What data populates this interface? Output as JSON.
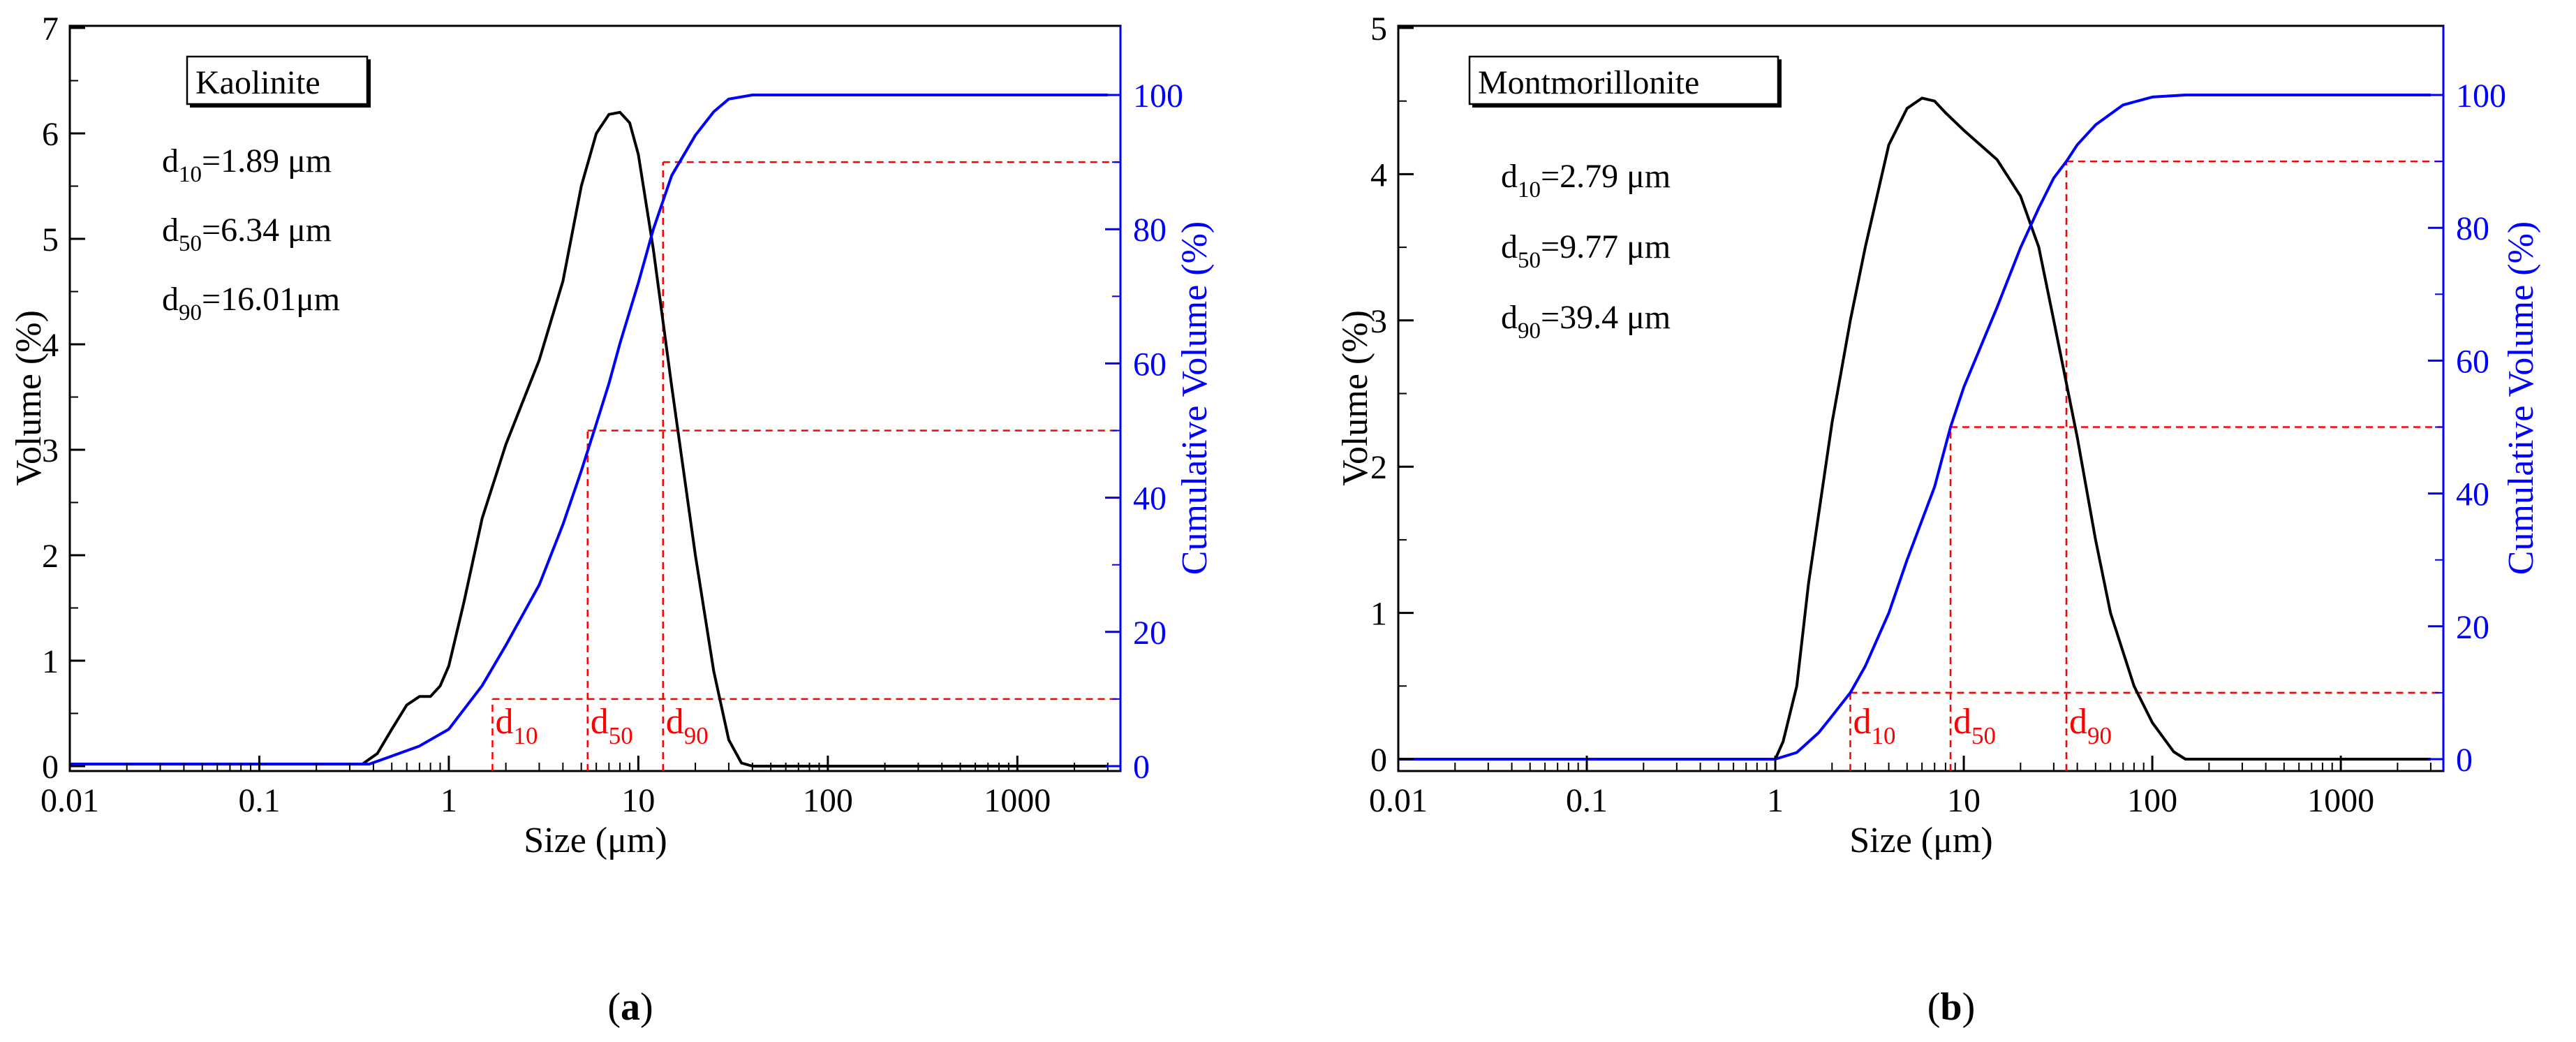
{
  "chart_data": [
    {
      "panel_label": "(a)",
      "material": "Kaolinite",
      "type": "line",
      "x_scale": "log",
      "xlim": [
        0.01,
        3500
      ],
      "ylim_left": [
        0,
        7
      ],
      "ylim_right": [
        0,
        110
      ],
      "xlabel": "Size (μm)",
      "ylabel": "Volume (%)",
      "ylabel_right": "Cumulative Volume (%)",
      "x_ticks": [
        {
          "v": 0.01,
          "label": "0.01"
        },
        {
          "v": 0.1,
          "label": "0.1"
        },
        {
          "v": 1,
          "label": "1"
        },
        {
          "v": 10,
          "label": "10"
        },
        {
          "v": 100,
          "label": "100"
        },
        {
          "v": 1000,
          "label": "1000"
        }
      ],
      "y_ticks_left": [
        "0",
        "1",
        "2",
        "3",
        "4",
        "5",
        "6",
        "7"
      ],
      "y_ticks_right": [
        "0",
        "20",
        "40",
        "60",
        "80",
        "100"
      ],
      "annotations": [
        {
          "sub": "10",
          "text": "=1.89 μm"
        },
        {
          "sub": "50",
          "text": "=6.34 μm"
        },
        {
          "sub": "90",
          "text": "=16.01μm"
        }
      ],
      "marker_labels": [
        {
          "sub": "10",
          "x": 1.7
        },
        {
          "sub": "50",
          "x": 5.4
        },
        {
          "sub": "90",
          "x": 13.5
        }
      ],
      "series": [
        {
          "name": "Volume",
          "axis": "left",
          "color": "#000000",
          "points": [
            [
              0.01,
              0.02
            ],
            [
              0.35,
              0.02
            ],
            [
              0.42,
              0.12
            ],
            [
              0.5,
              0.35
            ],
            [
              0.6,
              0.58
            ],
            [
              0.7,
              0.66
            ],
            [
              0.8,
              0.66
            ],
            [
              0.9,
              0.76
            ],
            [
              1.0,
              0.95
            ],
            [
              1.2,
              1.55
            ],
            [
              1.5,
              2.35
            ],
            [
              2.0,
              3.05
            ],
            [
              3.0,
              3.85
            ],
            [
              4.0,
              4.6
            ],
            [
              5.0,
              5.5
            ],
            [
              6.0,
              6.0
            ],
            [
              7.0,
              6.18
            ],
            [
              8.0,
              6.2
            ],
            [
              9.0,
              6.1
            ],
            [
              10.0,
              5.8
            ],
            [
              12.0,
              4.9
            ],
            [
              15.0,
              3.6
            ],
            [
              20.0,
              2.0
            ],
            [
              25.0,
              0.9
            ],
            [
              30.0,
              0.25
            ],
            [
              35.0,
              0.03
            ],
            [
              40.0,
              0.0
            ],
            [
              3000,
              0.0
            ]
          ]
        },
        {
          "name": "Cumulative Volume",
          "axis": "right",
          "color": "#0000ff",
          "points": [
            [
              0.01,
              0.3
            ],
            [
              0.38,
              0.3
            ],
            [
              0.5,
              1.5
            ],
            [
              0.7,
              3.0
            ],
            [
              1.0,
              5.5
            ],
            [
              1.5,
              12
            ],
            [
              2.0,
              18
            ],
            [
              3.0,
              27
            ],
            [
              4.0,
              36
            ],
            [
              5.0,
              44
            ],
            [
              6.0,
              51
            ],
            [
              7.0,
              57
            ],
            [
              8.0,
              63
            ],
            [
              10.0,
              72
            ],
            [
              12.0,
              80
            ],
            [
              15.0,
              88
            ],
            [
              20.0,
              94
            ],
            [
              25.0,
              97.5
            ],
            [
              30.0,
              99.4
            ],
            [
              40.0,
              100
            ],
            [
              3000,
              100
            ]
          ]
        }
      ],
      "reference_lines": {
        "color": "#ff0000",
        "d10": 1.7,
        "d50": 5.4,
        "d90": 13.5,
        "levels": [
          10,
          50,
          90
        ]
      }
    },
    {
      "panel_label": "(b)",
      "material": "Montmorillonite",
      "type": "line",
      "x_scale": "log",
      "xlim": [
        0.01,
        3500
      ],
      "ylim_left": [
        0,
        5
      ],
      "ylim_right": [
        0,
        110
      ],
      "xlabel": "Size (μm)",
      "ylabel": "Volume (%)",
      "ylabel_right": "Cumulative Volume (%)",
      "x_ticks": [
        {
          "v": 0.01,
          "label": "0.01"
        },
        {
          "v": 0.1,
          "label": "0.1"
        },
        {
          "v": 1,
          "label": "1"
        },
        {
          "v": 10,
          "label": "10"
        },
        {
          "v": 100,
          "label": "100"
        },
        {
          "v": 1000,
          "label": "1000"
        }
      ],
      "y_ticks_left": [
        "0",
        "1",
        "2",
        "3",
        "4",
        "5"
      ],
      "y_ticks_right": [
        "0",
        "20",
        "40",
        "60",
        "80",
        "100"
      ],
      "annotations": [
        {
          "sub": "10",
          "text": "=2.79 μm"
        },
        {
          "sub": "50",
          "text": "=9.77 μm"
        },
        {
          "sub": "90",
          "text": "=39.4 μm"
        }
      ],
      "marker_labels": [
        {
          "sub": "10",
          "x": 2.5
        },
        {
          "sub": "50",
          "x": 8.5
        },
        {
          "sub": "90",
          "x": 35
        }
      ],
      "series": [
        {
          "name": "Volume",
          "axis": "left",
          "color": "#000000",
          "points": [
            [
              0.01,
              0.0
            ],
            [
              1.0,
              0.0
            ],
            [
              1.1,
              0.12
            ],
            [
              1.3,
              0.5
            ],
            [
              1.5,
              1.2
            ],
            [
              2.0,
              2.3
            ],
            [
              2.5,
              3.0
            ],
            [
              3.0,
              3.5
            ],
            [
              4.0,
              4.2
            ],
            [
              5.0,
              4.45
            ],
            [
              6.0,
              4.52
            ],
            [
              7.0,
              4.5
            ],
            [
              8.0,
              4.42
            ],
            [
              10.0,
              4.3
            ],
            [
              15.0,
              4.1
            ],
            [
              20.0,
              3.85
            ],
            [
              25.0,
              3.5
            ],
            [
              30.0,
              3.0
            ],
            [
              40.0,
              2.2
            ],
            [
              50.0,
              1.5
            ],
            [
              60.0,
              1.0
            ],
            [
              80.0,
              0.5
            ],
            [
              100.0,
              0.25
            ],
            [
              130.0,
              0.05
            ],
            [
              150.0,
              0.0
            ],
            [
              3000,
              0.0
            ]
          ]
        },
        {
          "name": "Cumulative Volume",
          "axis": "right",
          "color": "#0000ff",
          "points": [
            [
              0.01,
              0.0
            ],
            [
              1.0,
              0.0
            ],
            [
              1.3,
              1.0
            ],
            [
              1.7,
              4.0
            ],
            [
              2.0,
              6.5
            ],
            [
              2.5,
              10
            ],
            [
              3.0,
              14
            ],
            [
              4.0,
              22
            ],
            [
              5.0,
              30
            ],
            [
              7.0,
              41
            ],
            [
              8.5,
              50
            ],
            [
              10.0,
              56
            ],
            [
              15.0,
              68
            ],
            [
              20.0,
              77
            ],
            [
              25.0,
              83
            ],
            [
              30.0,
              87.5
            ],
            [
              35.0,
              90
            ],
            [
              40.0,
              92.5
            ],
            [
              50.0,
              95.5
            ],
            [
              70.0,
              98.5
            ],
            [
              100.0,
              99.7
            ],
            [
              150.0,
              100
            ],
            [
              3000,
              100
            ]
          ]
        }
      ],
      "reference_lines": {
        "color": "#ff0000",
        "d10": 2.5,
        "d50": 8.5,
        "d90": 35,
        "levels": [
          10,
          50,
          90
        ]
      }
    }
  ]
}
